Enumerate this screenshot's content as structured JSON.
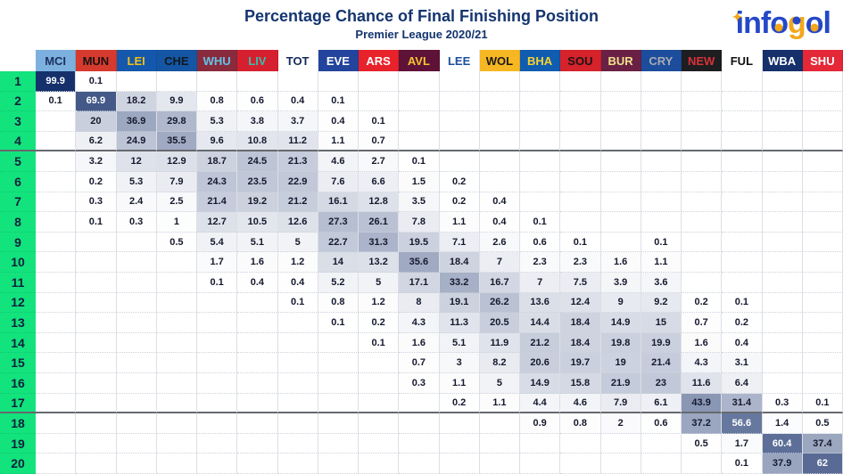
{
  "header": {
    "title": "Percentage Chance of Final Finishing Position",
    "subtitle": "Premier League 2020/21"
  },
  "logo": {
    "sparkle": "✦",
    "parts": [
      {
        "text": "in",
        "style": "lg-blue"
      },
      {
        "text": "f",
        "style": "lg-blue"
      },
      {
        "text": "o",
        "style": "lg-o"
      },
      {
        "text": "g",
        "style": "lg-g"
      },
      {
        "text": "o",
        "style": "lg-o"
      },
      {
        "text": "l",
        "style": "lg-blue"
      }
    ]
  },
  "chart_data": {
    "type": "heatmap",
    "title": "Percentage Chance of Final Finishing Position",
    "subtitle": "Premier League 2020/21",
    "legend_position": "none",
    "grid": true,
    "value_range": [
      0,
      100
    ],
    "colorscale": {
      "low": "#FFFFFF",
      "high": "#16306B"
    },
    "position_column_bg": "#12E37D",
    "separators_after_rows": [
      4,
      17
    ],
    "columns": [
      {
        "abbr": "MCI",
        "bg": "#7CB1DF",
        "fg": "#1D2F5E"
      },
      {
        "abbr": "MUN",
        "bg": "#D63A2F",
        "fg": "#1A1211"
      },
      {
        "abbr": "LEI",
        "bg": "#1358AC",
        "fg": "#F8BE15"
      },
      {
        "abbr": "CHE",
        "bg": "#1456A3",
        "fg": "#101820"
      },
      {
        "abbr": "WHU",
        "bg": "#8A2B3D",
        "fg": "#62C3E8"
      },
      {
        "abbr": "LIV",
        "bg": "#D62030",
        "fg": "#36BFAC"
      },
      {
        "abbr": "TOT",
        "bg": "#FFFFFF",
        "fg": "#16295C"
      },
      {
        "abbr": "EVE",
        "bg": "#23449C",
        "fg": "#FFFFFF"
      },
      {
        "abbr": "ARS",
        "bg": "#E8222B",
        "fg": "#FFFFFF"
      },
      {
        "abbr": "AVL",
        "bg": "#5E1237",
        "fg": "#F3C531"
      },
      {
        "abbr": "LEE",
        "bg": "#FFFFFF",
        "fg": "#1D4EA1"
      },
      {
        "abbr": "WOL",
        "bg": "#F6B722",
        "fg": "#1E1A18"
      },
      {
        "abbr": "BHA",
        "bg": "#0F5CB0",
        "fg": "#F8D230"
      },
      {
        "abbr": "SOU",
        "bg": "#D6222B",
        "fg": "#1C1416"
      },
      {
        "abbr": "BUR",
        "bg": "#6A2045",
        "fg": "#EFE38D"
      },
      {
        "abbr": "CRY",
        "bg": "#1C4D9C",
        "fg": "#A8ABB4"
      },
      {
        "abbr": "NEW",
        "bg": "#1E1E20",
        "fg": "#D8323A"
      },
      {
        "abbr": "FUL",
        "bg": "#FFFFFF",
        "fg": "#111111"
      },
      {
        "abbr": "WBA",
        "bg": "#15306B",
        "fg": "#FFFFFF"
      },
      {
        "abbr": "SHU",
        "bg": "#E42837",
        "fg": "#FFFFFF"
      }
    ],
    "row_labels": [
      1,
      2,
      3,
      4,
      5,
      6,
      7,
      8,
      9,
      10,
      11,
      12,
      13,
      14,
      15,
      16,
      17,
      18,
      19,
      20
    ],
    "matrix": [
      [
        99.9,
        0.1,
        null,
        null,
        null,
        null,
        null,
        null,
        null,
        null,
        null,
        null,
        null,
        null,
        null,
        null,
        null,
        null,
        null,
        null
      ],
      [
        0.1,
        69.9,
        18.2,
        9.9,
        0.8,
        0.6,
        0.4,
        0.1,
        null,
        null,
        null,
        null,
        null,
        null,
        null,
        null,
        null,
        null,
        null,
        null
      ],
      [
        null,
        20,
        36.9,
        29.8,
        5.3,
        3.8,
        3.7,
        0.4,
        0.1,
        null,
        null,
        null,
        null,
        null,
        null,
        null,
        null,
        null,
        null,
        null
      ],
      [
        null,
        6.2,
        24.9,
        35.5,
        9.6,
        10.8,
        11.2,
        1.1,
        0.7,
        null,
        null,
        null,
        null,
        null,
        null,
        null,
        null,
        null,
        null,
        null
      ],
      [
        null,
        3.2,
        12,
        12.9,
        18.7,
        24.5,
        21.3,
        4.6,
        2.7,
        0.1,
        null,
        null,
        null,
        null,
        null,
        null,
        null,
        null,
        null,
        null
      ],
      [
        null,
        0.2,
        5.3,
        7.9,
        24.3,
        23.5,
        22.9,
        7.6,
        6.6,
        1.5,
        0.2,
        null,
        null,
        null,
        null,
        null,
        null,
        null,
        null,
        null
      ],
      [
        null,
        0.3,
        2.4,
        2.5,
        21.4,
        19.2,
        21.2,
        16.1,
        12.8,
        3.5,
        0.2,
        0.4,
        null,
        null,
        null,
        null,
        null,
        null,
        null,
        null
      ],
      [
        null,
        0.1,
        0.3,
        1,
        12.7,
        10.5,
        12.6,
        27.3,
        26.1,
        7.8,
        1.1,
        0.4,
        0.1,
        null,
        null,
        null,
        null,
        null,
        null,
        null
      ],
      [
        null,
        null,
        null,
        0.5,
        5.4,
        5.1,
        5,
        22.7,
        31.3,
        19.5,
        7.1,
        2.6,
        0.6,
        0.1,
        null,
        0.1,
        null,
        null,
        null,
        null
      ],
      [
        null,
        null,
        null,
        null,
        1.7,
        1.6,
        1.2,
        14,
        13.2,
        35.6,
        18.4,
        7,
        2.3,
        2.3,
        1.6,
        1.1,
        null,
        null,
        null,
        null
      ],
      [
        null,
        null,
        null,
        null,
        0.1,
        0.4,
        0.4,
        5.2,
        5,
        17.1,
        33.2,
        16.7,
        7,
        7.5,
        3.9,
        3.6,
        null,
        null,
        null,
        null
      ],
      [
        null,
        null,
        null,
        null,
        null,
        null,
        0.1,
        0.8,
        1.2,
        8,
        19.1,
        26.2,
        13.6,
        12.4,
        9,
        9.2,
        0.2,
        0.1,
        null,
        null
      ],
      [
        null,
        null,
        null,
        null,
        null,
        null,
        null,
        0.1,
        0.2,
        4.3,
        11.3,
        20.5,
        14.4,
        18.4,
        14.9,
        15,
        0.7,
        0.2,
        null,
        null
      ],
      [
        null,
        null,
        null,
        null,
        null,
        null,
        null,
        null,
        0.1,
        1.6,
        5.1,
        11.9,
        21.2,
        18.4,
        19.8,
        19.9,
        1.6,
        0.4,
        null,
        null
      ],
      [
        null,
        null,
        null,
        null,
        null,
        null,
        null,
        null,
        null,
        0.7,
        3,
        8.2,
        20.6,
        19.7,
        19,
        21.4,
        4.3,
        3.1,
        null,
        null
      ],
      [
        null,
        null,
        null,
        null,
        null,
        null,
        null,
        null,
        null,
        0.3,
        1.1,
        5,
        14.9,
        15.8,
        21.9,
        23,
        11.6,
        6.4,
        null,
        null
      ],
      [
        null,
        null,
        null,
        null,
        null,
        null,
        null,
        null,
        null,
        null,
        0.2,
        1.1,
        4.4,
        4.6,
        7.9,
        6.1,
        43.9,
        31.4,
        0.3,
        0.1
      ],
      [
        null,
        null,
        null,
        null,
        null,
        null,
        null,
        null,
        null,
        null,
        null,
        null,
        0.9,
        0.8,
        2,
        0.6,
        37.2,
        56.6,
        1.4,
        0.5
      ],
      [
        null,
        null,
        null,
        null,
        null,
        null,
        null,
        null,
        null,
        null,
        null,
        null,
        null,
        null,
        null,
        null,
        0.5,
        1.7,
        60.4,
        37.4
      ],
      [
        null,
        null,
        null,
        null,
        null,
        null,
        null,
        null,
        null,
        null,
        null,
        null,
        null,
        null,
        null,
        null,
        null,
        0.1,
        37.9,
        62
      ]
    ]
  }
}
